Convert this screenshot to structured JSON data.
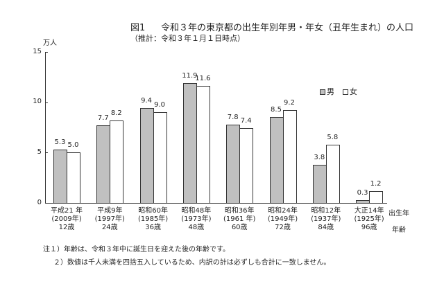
{
  "header": {
    "figure_label": "図1",
    "title": "令和３年の東京都の出生年別年男・年女（丑年生まれ）の人口",
    "subtitle": "（推計：令和３年１月１日時点）"
  },
  "axis": {
    "unit": "万人",
    "yticks": [
      "0",
      "5",
      "10",
      "15"
    ],
    "x_row1_label": "出生年",
    "x_row3_label": "年齢"
  },
  "legend": {
    "male": "男",
    "female": "女"
  },
  "groups": [
    {
      "era": "平成21 年",
      "year": "(2009年)",
      "age": "12歳",
      "male": "5.3",
      "female": "5.0"
    },
    {
      "era": "平成9年",
      "year": "(1997年)",
      "age": "24歳",
      "male": "7.7",
      "female": "8.2"
    },
    {
      "era": "昭和60年",
      "year": "(1985年)",
      "age": "36歳",
      "male": "9.4",
      "female": "9.0"
    },
    {
      "era": "昭和48年",
      "year": "(1973年)",
      "age": "48歳",
      "male": "11.9",
      "female": "11.6"
    },
    {
      "era": "昭和36年",
      "year": "(1961 年)",
      "age": "60歳",
      "male": "7.8",
      "female": "7.4"
    },
    {
      "era": "昭和24年",
      "year": "(1949年)",
      "age": "72歳",
      "male": "8.5",
      "female": "9.2"
    },
    {
      "era": "昭和12年",
      "year": "(1937年)",
      "age": "84歳",
      "male": "3.8",
      "female": "5.8"
    },
    {
      "era": "大正14年",
      "year": "(1925年)",
      "age": "96歳",
      "male": "0.3",
      "female": "1.2"
    }
  ],
  "notes": [
    "注１）年齢は、令和３年中に誕生日を迎えた後の年齢です。",
    "２）数値は千人未満を四捨五入しているため、内訳の計は必ずしも合計に一致しません。"
  ],
  "colors": {
    "male": "#c0c0c0",
    "female": "#ffffff",
    "axis": "#333333"
  },
  "chart_data": {
    "type": "bar",
    "title": "令和３年の東京都の出生年別年男・年女（丑年生まれ）の人口",
    "subtitle": "（推計：令和３年１月１日時点）",
    "categories": [
      "平成21年(2009年)12歳",
      "平成9年(1997年)24歳",
      "昭和60年(1985年)36歳",
      "昭和48年(1973年)48歳",
      "昭和36年(1961年)60歳",
      "昭和24年(1949年)72歳",
      "昭和12年(1937年)84歳",
      "大正14年(1925年)96歳"
    ],
    "series": [
      {
        "name": "男",
        "values": [
          5.3,
          7.7,
          9.4,
          11.9,
          7.8,
          8.5,
          3.8,
          0.3
        ]
      },
      {
        "name": "女",
        "values": [
          5.0,
          8.2,
          9.0,
          11.6,
          7.4,
          9.2,
          5.8,
          1.2
        ]
      }
    ],
    "xlabel": "出生年 / 年齢",
    "ylabel": "万人",
    "ylim": [
      0,
      15
    ],
    "yticks": [
      0,
      5,
      10,
      15
    ],
    "grid": false,
    "legend_position": "upper right (inside plot)"
  }
}
